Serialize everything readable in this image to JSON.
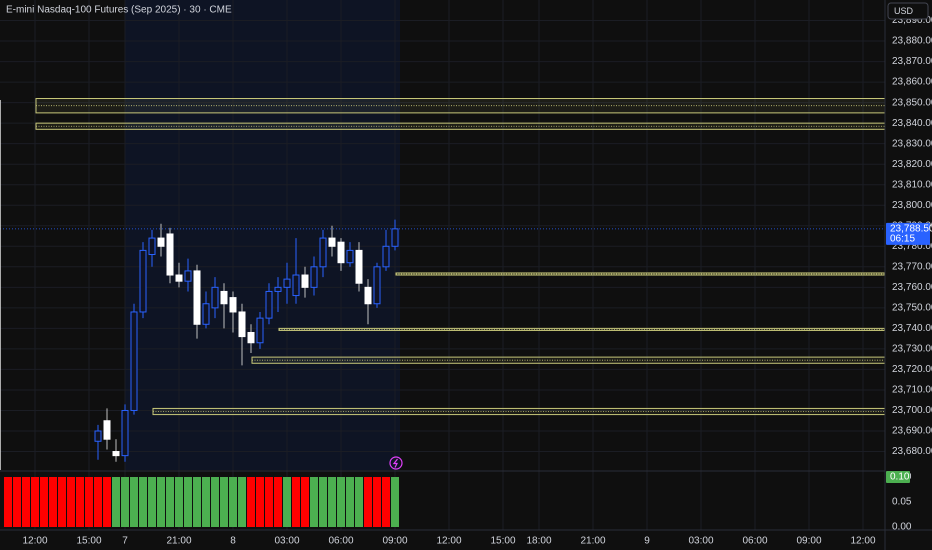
{
  "chart_data": {
    "type": "candlestick",
    "title": "E-mini Nasdaq-100 Futures (Sep 2025) · 30 · CME",
    "currency": "USD",
    "x_labels": [
      "12:00",
      "15:00",
      "7",
      "21:00",
      "8",
      "03:00",
      "06:00",
      "09:00",
      "12:00",
      "15:00",
      "18:00",
      "21:00",
      "9",
      "03:00",
      "06:00",
      "09:00",
      "12:00"
    ],
    "open": [
      null,
      null,
      null,
      null,
      null,
      null,
      null,
      null,
      null,
      null,
      23685,
      23695,
      23680,
      23678,
      23700,
      23748,
      23776,
      23784,
      23786,
      23766,
      23763,
      23768,
      23742,
      23750,
      23758,
      23755,
      23748,
      23738,
      23733,
      23745,
      23758,
      23760,
      23756,
      23766,
      23760,
      23770,
      23784,
      23782,
      23772,
      23778,
      23760,
      23752,
      23770,
      23780
    ],
    "high": [
      null,
      null,
      null,
      null,
      null,
      null,
      null,
      null,
      null,
      null,
      23693,
      23701,
      23686,
      23703,
      23752,
      23782,
      23788,
      23791,
      23789,
      23772,
      23774,
      23771,
      23758,
      23765,
      23762,
      23758,
      23752,
      23742,
      23748,
      23762,
      23765,
      23772,
      23784,
      23770,
      23775,
      23788,
      23790,
      23784,
      23782,
      23782,
      23764,
      23772,
      23788,
      23793
    ],
    "low": [
      null,
      null,
      null,
      null,
      null,
      null,
      null,
      null,
      null,
      null,
      23676,
      23681,
      23675,
      23675,
      23698,
      23745,
      23770,
      23775,
      23762,
      23760,
      23758,
      23735,
      23740,
      23745,
      23740,
      23738,
      23722,
      23728,
      23730,
      23742,
      23748,
      23752,
      23752,
      23755,
      23756,
      23765,
      23775,
      23768,
      23770,
      23758,
      23742,
      23750,
      23768,
      23778
    ],
    "close": [
      null,
      null,
      null,
      null,
      null,
      null,
      null,
      null,
      null,
      null,
      23690,
      23686,
      23678,
      23700,
      23748,
      23778,
      23784,
      23780,
      23766,
      23763,
      23768,
      23742,
      23752,
      23760,
      23752,
      23748,
      23736,
      23733,
      23745,
      23758,
      23760,
      23764,
      23766,
      23760,
      23770,
      23784,
      23780,
      23772,
      23778,
      23762,
      23752,
      23770,
      23780,
      23788.5
    ],
    "up_color": "#2962ff",
    "down_color": "#ffffff",
    "ylim": [
      23671,
      23900
    ],
    "yticks": [
      {
        "value": 23680,
        "label": "23,680.00"
      },
      {
        "value": 23690,
        "label": "23,690.00"
      },
      {
        "value": 23700,
        "label": "23,700.00"
      },
      {
        "value": 23710,
        "label": "23,710.00"
      },
      {
        "value": 23720,
        "label": "23,720.00"
      },
      {
        "value": 23730,
        "label": "23,730.00"
      },
      {
        "value": 23740,
        "label": "23,740.00"
      },
      {
        "value": 23750,
        "label": "23,750.00"
      },
      {
        "value": 23760,
        "label": "23,760.00"
      },
      {
        "value": 23770,
        "label": "23,770.00"
      },
      {
        "value": 23780,
        "label": "23,780.00"
      },
      {
        "value": 23790,
        "label": "23,790.00"
      },
      {
        "value": 23800,
        "label": "23,800.00"
      },
      {
        "value": 23810,
        "label": "23,810.00"
      },
      {
        "value": 23820,
        "label": "23,820.00"
      },
      {
        "value": 23830,
        "label": "23,830.00"
      },
      {
        "value": 23840,
        "label": "23,840.00"
      },
      {
        "value": 23850,
        "label": "23,850.00"
      },
      {
        "value": 23860,
        "label": "23,860.00"
      },
      {
        "value": 23870,
        "label": "23,870.00"
      },
      {
        "value": 23880,
        "label": "23,880.00"
      },
      {
        "value": 23890,
        "label": "23,890.00"
      }
    ],
    "grid": true,
    "zones": [
      {
        "top": 23852,
        "bottom": 23845
      },
      {
        "top": 23840,
        "bottom": 23837
      },
      {
        "top": 23767,
        "bottom": 23766
      },
      {
        "top": 23740,
        "bottom": 23739
      },
      {
        "top": 23726,
        "bottom": 23723
      },
      {
        "top": 23701,
        "bottom": 23698
      }
    ],
    "zone_color": "#c8c87a",
    "last_price": {
      "value": 23788.5,
      "label": "23,788.50"
    },
    "countdown": "06:15",
    "indicator": {
      "type": "bar",
      "values": [
        0.1,
        0.1,
        0.1,
        0.1,
        0.1,
        0.1,
        0.1,
        0.1,
        0.1,
        0.1,
        0.1,
        0.1,
        0.1,
        0.1,
        0.1,
        0.1,
        0.1,
        0.1,
        0.1,
        0.1,
        0.1,
        0.1,
        0.1,
        0.1,
        0.1,
        0.1,
        0.1,
        0.1,
        0.1,
        0.1,
        0.1,
        0.1,
        0.1,
        0.1,
        0.1,
        0.1,
        0.1,
        0.1,
        0.1,
        0.1,
        0.1,
        0.1,
        0.1,
        0.1
      ],
      "colors": [
        "#ff0000",
        "#ff0000",
        "#ff0000",
        "#ff0000",
        "#ff0000",
        "#ff0000",
        "#ff0000",
        "#ff0000",
        "#ff0000",
        "#ff0000",
        "#ff0000",
        "#ff0000",
        "#4caf50",
        "#4caf50",
        "#4caf50",
        "#4caf50",
        "#4caf50",
        "#4caf50",
        "#4caf50",
        "#4caf50",
        "#4caf50",
        "#4caf50",
        "#4caf50",
        "#4caf50",
        "#4caf50",
        "#4caf50",
        "#4caf50",
        "#ff0000",
        "#ff0000",
        "#ff0000",
        "#ff0000",
        "#4caf50",
        "#ff0000",
        "#ff0000",
        "#4caf50",
        "#4caf50",
        "#4caf50",
        "#4caf50",
        "#4caf50",
        "#4caf50",
        "#ff0000",
        "#ff0000",
        "#ff0000",
        "#4caf50"
      ],
      "ylim": [
        0,
        0.11
      ],
      "yticks": [
        {
          "value": 0,
          "label": "0.00"
        },
        {
          "value": 0.05,
          "label": "0.05"
        },
        {
          "value": 0.1,
          "label": "0.10"
        }
      ],
      "last": {
        "value": 0.1,
        "label": "0.10"
      }
    }
  }
}
